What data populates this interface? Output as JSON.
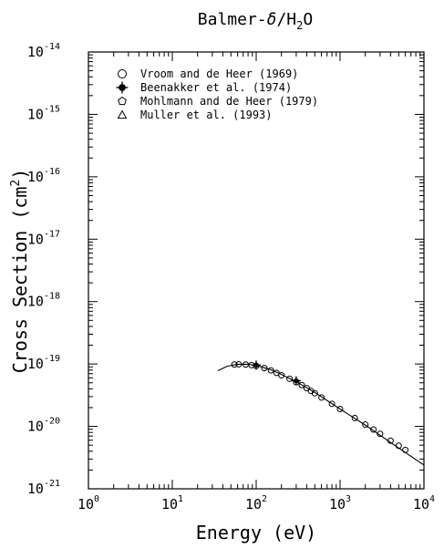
{
  "chart_data": {
    "type": "scatter",
    "title_parts": [
      "Balmer-",
      "δ",
      "/H",
      "2",
      "O"
    ],
    "xlabel": "Energy (eV)",
    "ylabel_parts": [
      "Cross Section (cm",
      "2",
      ")"
    ],
    "x_scale": "log",
    "y_scale": "log",
    "xlim": [
      1,
      10000
    ],
    "ylim": [
      1e-21,
      1e-14
    ],
    "grid": false,
    "legend_position": "top-left",
    "x_ticks": [
      {
        "base": "10",
        "exp": "0",
        "value": 1
      },
      {
        "base": "10",
        "exp": "1",
        "value": 10
      },
      {
        "base": "10",
        "exp": "2",
        "value": 100
      },
      {
        "base": "10",
        "exp": "3",
        "value": 1000
      },
      {
        "base": "10",
        "exp": "4",
        "value": 10000
      }
    ],
    "y_ticks": [
      {
        "base": "10",
        "exp": "-14",
        "value": 1e-14
      },
      {
        "base": "10",
        "exp": "-15",
        "value": 1e-15
      },
      {
        "base": "10",
        "exp": "-16",
        "value": 1e-16
      },
      {
        "base": "10",
        "exp": "-17",
        "value": 1e-17
      },
      {
        "base": "10",
        "exp": "-18",
        "value": 1e-18
      },
      {
        "base": "10",
        "exp": "-19",
        "value": 1e-19
      },
      {
        "base": "10",
        "exp": "-20",
        "value": 1e-20
      },
      {
        "base": "10",
        "exp": "-21",
        "value": 1e-21
      }
    ],
    "series": [
      {
        "name": "Vroom and de Heer (1969)",
        "marker": "circle",
        "x": [
          55,
          62,
          75,
          88,
          100,
          125,
          150,
          175,
          200,
          250,
          300,
          350,
          400,
          450,
          500,
          600,
          800,
          1000,
          1500,
          2000,
          2500,
          3000,
          4000,
          5000,
          6000
        ],
        "y": [
          9.8e-20,
          9.9e-20,
          9.8e-20,
          9.6e-20,
          9.3e-20,
          8.6e-20,
          7.9e-20,
          7.2e-20,
          6.6e-20,
          5.8e-20,
          5.1e-20,
          4.6e-20,
          4.1e-20,
          3.7e-20,
          3.4e-20,
          2.9e-20,
          2.3e-20,
          1.9e-20,
          1.36e-20,
          1.07e-20,
          8.9e-21,
          7.6e-21,
          5.9e-21,
          4.9e-21,
          4.2e-21
        ]
      },
      {
        "name": "Beenakker et al. (1974)",
        "marker": "cross",
        "x": [
          100,
          300
        ],
        "y": [
          9.6e-20,
          5.4e-20
        ]
      },
      {
        "name": "Mohlmann and de Heer (1979)",
        "marker": "pentagon",
        "x": [],
        "y": []
      },
      {
        "name": "Muller et al. (1993)",
        "marker": "triangle",
        "x": [],
        "y": []
      }
    ],
    "fit_curve": {
      "x": [
        35,
        45,
        60,
        80,
        100,
        150,
        200,
        300,
        500,
        1000,
        2000,
        5000,
        10000
      ],
      "y": [
        7.8e-20,
        9.2e-20,
        9.9e-20,
        9.9e-20,
        9.5e-20,
        8.1e-20,
        6.8e-20,
        5.2e-20,
        3.5e-20,
        1.9e-20,
        1.05e-20,
        4.5e-21,
        2.4e-21
      ]
    }
  }
}
